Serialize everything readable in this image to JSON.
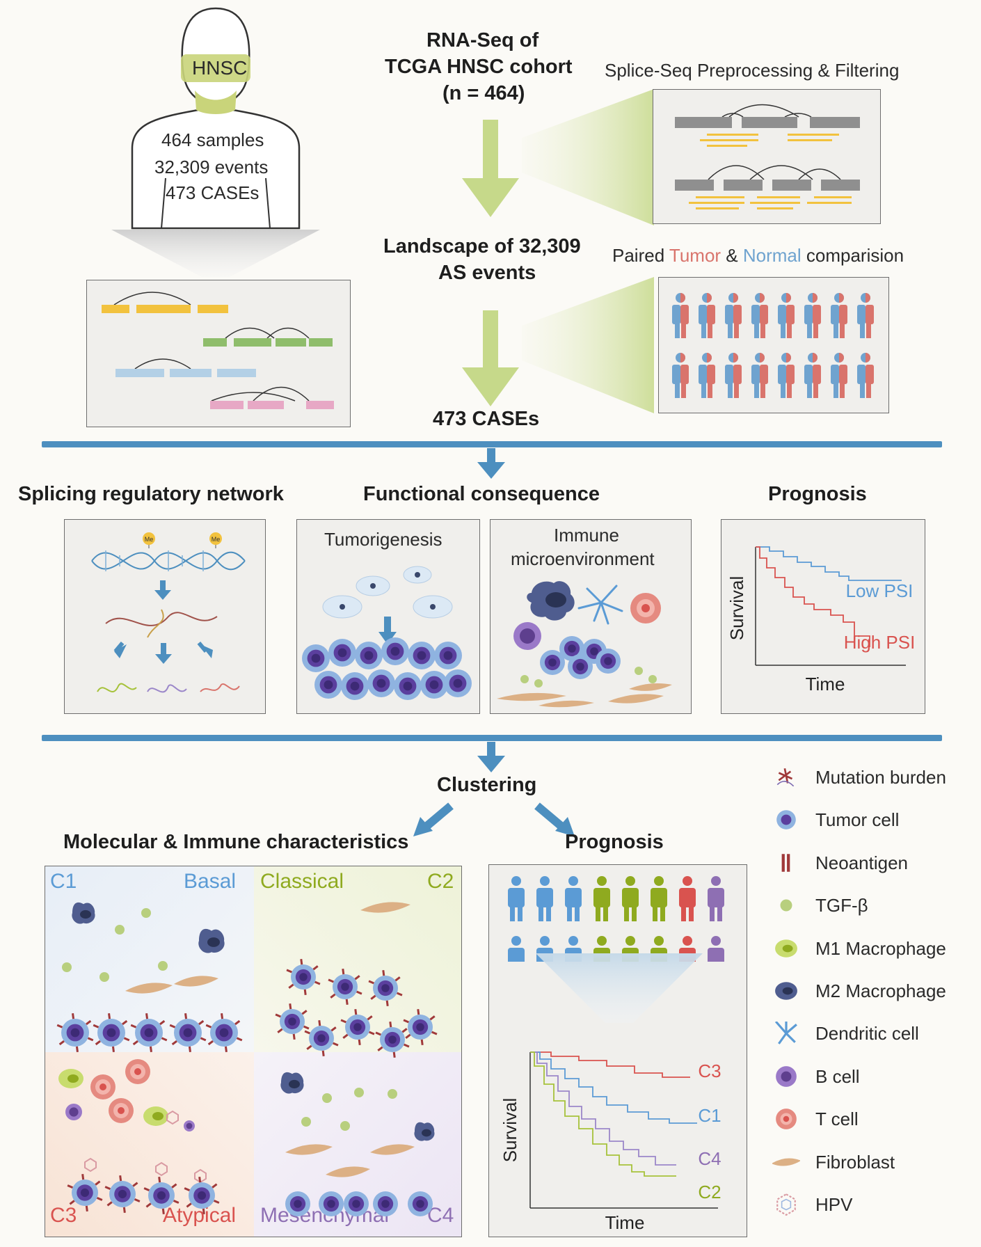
{
  "top": {
    "silhouette_label": "HNSC",
    "samples": "464 samples",
    "events": "32,309 events",
    "cases": "473 CASEs",
    "rnaseq_title_l1": "RNA-Seq of",
    "rnaseq_title_l2": "TCGA HNSC cohort",
    "rnaseq_title_l3": "(n = 464)",
    "spliceseq_label": "Splice-Seq Preprocessing & Filtering",
    "landscape_l1": "Landscape of 32,309",
    "landscape_l2": "AS events",
    "paired_prefix": "Paired ",
    "paired_tumor": "Tumor",
    "paired_and": " & ",
    "paired_normal": "Normal",
    "paired_suffix": " comparision",
    "cases_result": "473 CASEs"
  },
  "middle": {
    "splicing_title": "Splicing regulatory network",
    "functional_title": "Functional consequence",
    "prognosis_title": "Prognosis",
    "me_label": "Me",
    "tumorigenesis": "Tumorigenesis",
    "immune_l1": "Immune",
    "immune_l2": "microenvironment",
    "survival_ylabel": "Survival",
    "survival_xlabel": "Time",
    "low_psi": "Low PSI",
    "high_psi": "High PSI"
  },
  "bottom": {
    "clustering": "Clustering",
    "molecular_title": "Molecular & Immune characteristics",
    "prognosis_title": "Prognosis",
    "c1": "C1",
    "basal": "Basal",
    "classical": "Classical",
    "c2": "C2",
    "c3": "C3",
    "atypical": "Atypical",
    "mesenchymal": "Mesenchymal",
    "c4": "C4",
    "km_ylabel": "Survival",
    "km_xlabel": "Time",
    "km_c3": "C3",
    "km_c1": "C1",
    "km_c4": "C4",
    "km_c2": "C2"
  },
  "legend": [
    {
      "icon": "mutation-burden-icon",
      "label": "Mutation burden"
    },
    {
      "icon": "tumor-cell-icon",
      "label": "Tumor cell"
    },
    {
      "icon": "neoantigen-icon",
      "label": "Neoantigen"
    },
    {
      "icon": "tgf-beta-icon",
      "label": "TGF-β"
    },
    {
      "icon": "m1-macrophage-icon",
      "label": "M1 Macrophage"
    },
    {
      "icon": "m2-macrophage-icon",
      "label": "M2 Macrophage"
    },
    {
      "icon": "dendritic-cell-icon",
      "label": "Dendritic cell"
    },
    {
      "icon": "b-cell-icon",
      "label": "B cell"
    },
    {
      "icon": "t-cell-icon",
      "label": "T cell"
    },
    {
      "icon": "fibroblast-icon",
      "label": "Fibroblast"
    },
    {
      "icon": "hpv-icon",
      "label": "HPV"
    }
  ],
  "colors": {
    "blue_rule": "#4d8fbf",
    "green_arrow": "#c6d98a",
    "tumor_red": "#d9746c",
    "normal_blue": "#6fa3cf",
    "c1": "#5b9bd5",
    "c2": "#8faa1f",
    "c3": "#d9534f",
    "c4": "#8e6fb3"
  }
}
